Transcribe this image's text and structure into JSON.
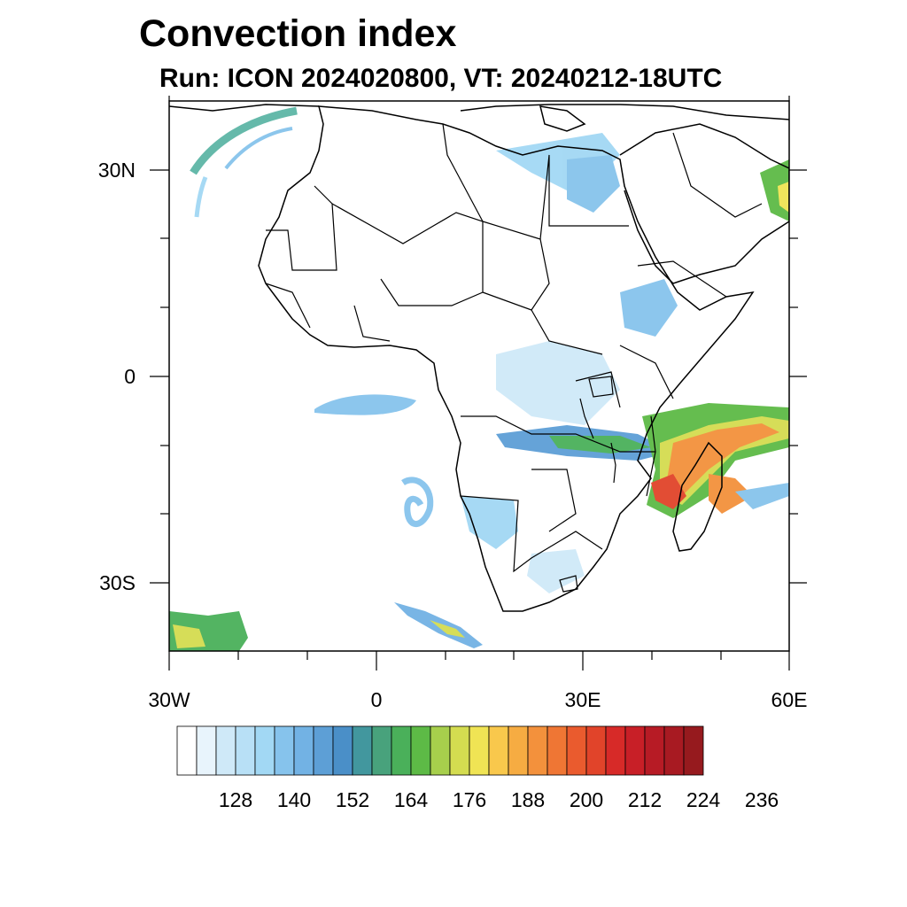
{
  "title": "Convection index",
  "subtitle": "Run: ICON 2024020800,  VT: 20240212-18UTC",
  "map": {
    "region": "Africa",
    "extent": {
      "lon": [
        -30,
        60
      ],
      "lat": [
        -40,
        40
      ]
    },
    "lon_ticks": [
      {
        "value": -30,
        "label": "30W"
      },
      {
        "value": 0,
        "label": "0"
      },
      {
        "value": 30,
        "label": "30E"
      },
      {
        "value": 60,
        "label": "60E"
      }
    ],
    "lat_ticks": [
      {
        "value": 30,
        "label": "30N"
      },
      {
        "value": 0,
        "label": "0"
      },
      {
        "value": -30,
        "label": "30S"
      }
    ]
  },
  "colorbar": {
    "labels": [
      "128",
      "140",
      "152",
      "164",
      "176",
      "188",
      "200",
      "212",
      "224",
      "236"
    ],
    "colors": [
      "#ffffff",
      "#e8f4fc",
      "#cfe9f8",
      "#b8e0f6",
      "#a2d8f4",
      "#86c3ec",
      "#72b2e4",
      "#5d9fd6",
      "#4a8fc8",
      "#42979e",
      "#48a27c",
      "#4ab05a",
      "#5dba46",
      "#a7cf4c",
      "#d4dc50",
      "#f0e454",
      "#f9c84c",
      "#f6ac42",
      "#f3913c",
      "#ef7634",
      "#ea5b2e",
      "#e1442a",
      "#d72a28",
      "#c81f27",
      "#b71b25",
      "#a81a22",
      "#961a1e"
    ]
  }
}
